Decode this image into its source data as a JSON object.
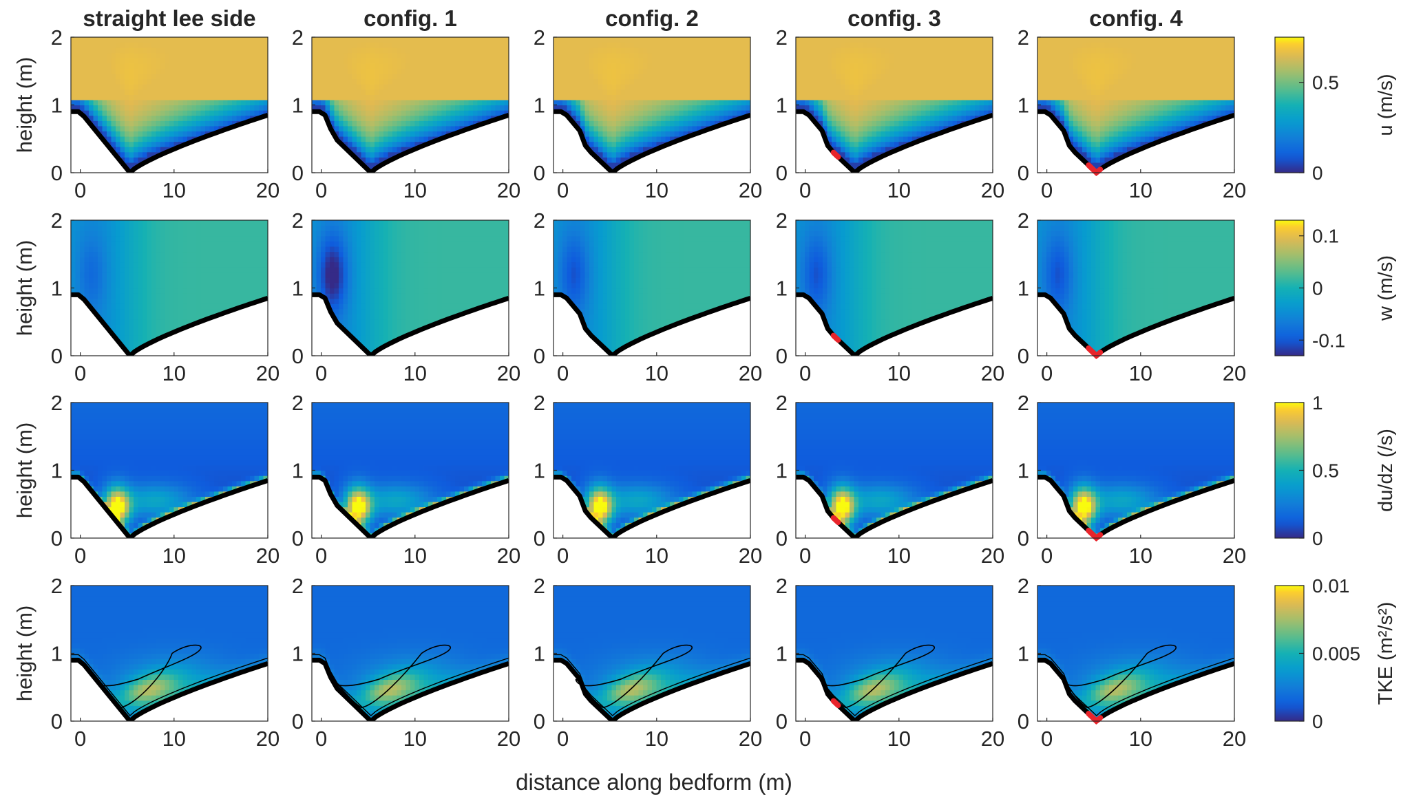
{
  "figure": {
    "xlabel": "distance along bedform (m)",
    "ylabel": "height (m)"
  },
  "columns": [
    {
      "title": "straight lee side",
      "config": "straight",
      "veg_start_frac": null
    },
    {
      "title": "config. 1",
      "config": "c1",
      "veg_start_frac": null
    },
    {
      "title": "config. 2",
      "config": "c2",
      "veg_start_frac": null
    },
    {
      "title": "config. 3",
      "config": "c3",
      "veg_start_frac": 0.55
    },
    {
      "title": "config. 4",
      "config": "c4",
      "veg_start_frac": 0.82
    }
  ],
  "rows": [
    {
      "variable": "u",
      "colorbar_label": "u (m/s)",
      "ticks": [
        "0",
        "0.5"
      ],
      "tick_values": [
        0,
        0.5
      ],
      "range": [
        0,
        0.75
      ]
    },
    {
      "variable": "w",
      "colorbar_label": "w (m/s)",
      "ticks": [
        "-0.1",
        "0",
        "0.1"
      ],
      "tick_values": [
        -0.1,
        0,
        0.1
      ],
      "range": [
        -0.13,
        0.13
      ]
    },
    {
      "variable": "dudz",
      "colorbar_label": "du/dz (/s)",
      "ticks": [
        "0",
        "0.5",
        "1"
      ],
      "tick_values": [
        0,
        0.5,
        1
      ],
      "range": [
        0,
        1
      ]
    },
    {
      "variable": "tke",
      "colorbar_label": "TKE (m²/s²)",
      "ticks": [
        "0",
        "0.005",
        "0.01"
      ],
      "tick_values": [
        0,
        0.005,
        0.01
      ],
      "range": [
        0,
        0.01
      ]
    }
  ],
  "colors": {
    "bed": "#000000",
    "vegetation": "#e8242b",
    "colormap": "parula"
  },
  "chart_data": {
    "type": "heatmap",
    "panel_count": 20,
    "xlim": [
      -1,
      20
    ],
    "ylim": [
      0,
      2
    ],
    "xticks": [
      0,
      10,
      20
    ],
    "xtick_labels": [
      "0",
      "10",
      "20"
    ],
    "yticks": [
      0,
      1,
      2
    ],
    "ytick_labels": [
      "0",
      "1",
      "2"
    ],
    "bed_profile": {
      "crest_height": 0.9,
      "trough_x": 5.3,
      "trough_height": 0,
      "end_x": 20,
      "end_height": 0.85
    }
  }
}
